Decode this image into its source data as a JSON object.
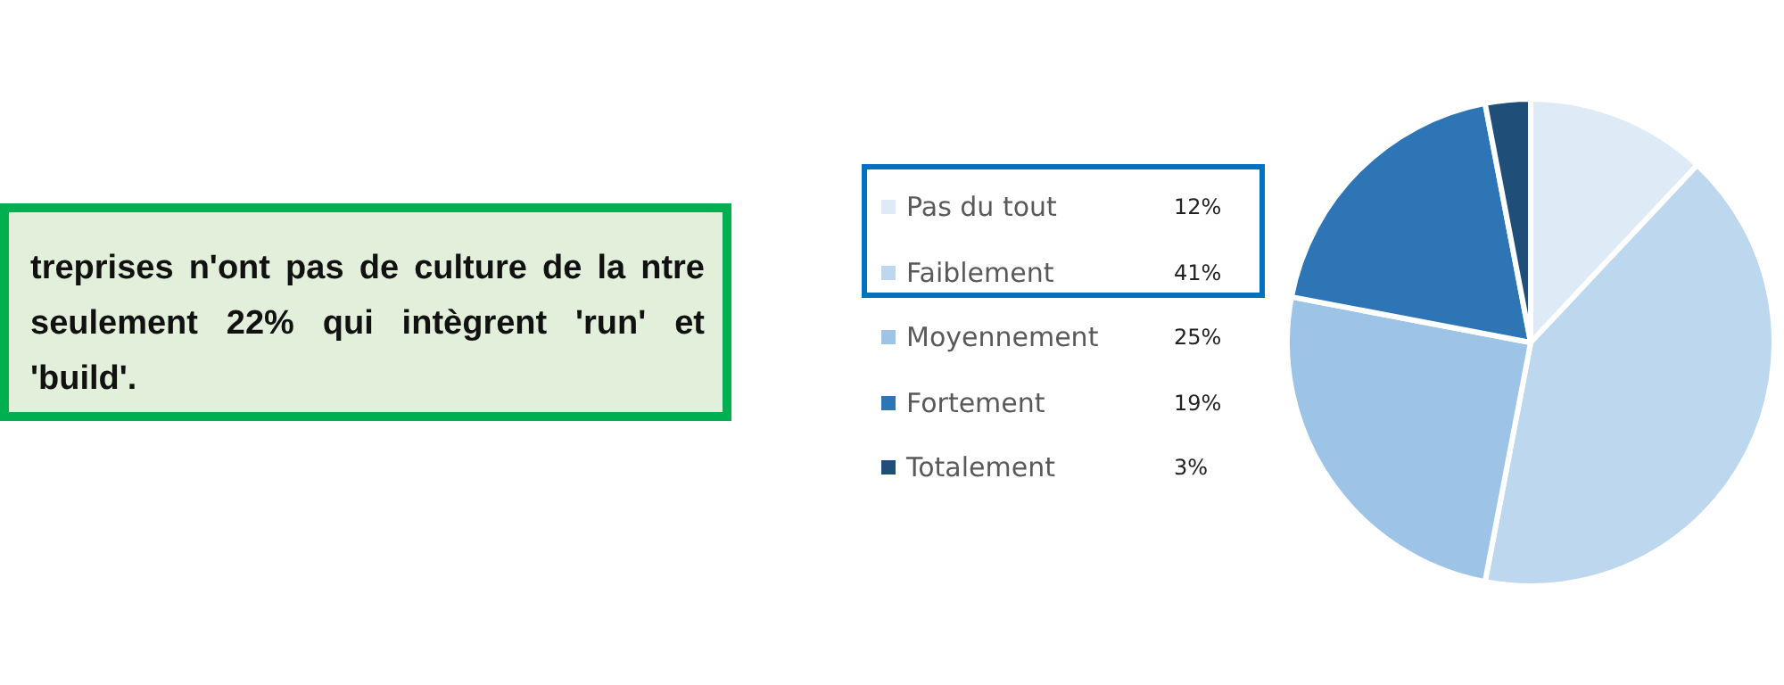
{
  "chart_data": {
    "type": "pie",
    "categories": [
      "Pas du tout",
      "Faiblement",
      "Moyennement",
      "Fortement",
      "Totalement"
    ],
    "values": [
      12,
      41,
      25,
      19,
      3
    ],
    "colors": [
      "#deebf7",
      "#bdd7ee",
      "#9dc3e6",
      "#2e75b6",
      "#1f4e79"
    ],
    "legend": "left",
    "value_labels": [
      "12%",
      "41%",
      "25%",
      "19%",
      "3%"
    ],
    "annotations": [
      "treprises n'ont pas de culture de la ntre seulement 22% qui intègrent 'run' et 'build'."
    ]
  }
}
